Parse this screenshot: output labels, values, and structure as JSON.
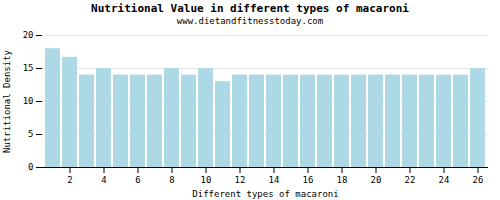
{
  "chart_data": {
    "type": "bar",
    "title": "Nutritional Value in different types of macaroni",
    "subtitle": "www.dietandfitnesstoday.com",
    "xlabel": "Different types of macaroni",
    "ylabel": "Nutritional Density",
    "categories": [
      null,
      "2",
      null,
      "4",
      null,
      "6",
      null,
      "8",
      null,
      "10",
      null,
      "12",
      null,
      "14",
      null,
      "16",
      null,
      "18",
      null,
      "20",
      null,
      "22",
      null,
      "24",
      null,
      "26"
    ],
    "values": [
      18.0,
      16.7,
      14.0,
      15.0,
      14.0,
      14.0,
      14.0,
      15.0,
      14.0,
      15.0,
      13.0,
      14.0,
      14.0,
      14.0,
      14.0,
      14.0,
      14.0,
      14.0,
      14.0,
      14.0,
      14.0,
      14.0,
      14.0,
      14.0,
      14.0,
      15.0
    ],
    "color": "#add8e6",
    "ylim": [
      0,
      20
    ],
    "yticks": [
      0,
      5,
      10,
      15,
      20
    ],
    "grid": true
  }
}
